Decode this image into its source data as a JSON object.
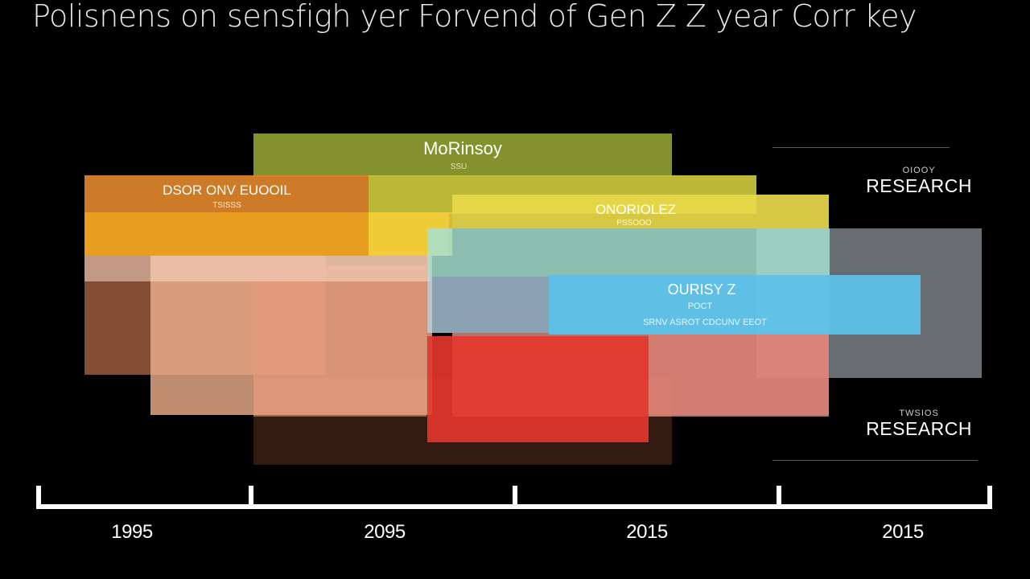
{
  "header": {
    "title": "Polisnens on sensfigh yer Forvend of Gen Z Z year Corr key"
  },
  "side": {
    "top_small": "OIOOY",
    "top_big": "RESEARCH",
    "bottom_small": "TWSIOS",
    "bottom_big": "RESEARCH"
  },
  "timeline": {
    "labels": [
      "1995",
      "2095",
      "2015",
      "2015"
    ]
  },
  "chart_data": {
    "type": "bar",
    "title": "Polisnens on sensfigh yer Forvend of Gen Z Z year Corr key",
    "xlabel": "",
    "ylabel": "",
    "grid": false,
    "legend": "none",
    "x_tick_labels": [
      "1995",
      "2095",
      "2015",
      "2015"
    ],
    "labeled_bands": [
      {
        "label": "MoRinsoy",
        "sublabel": "SSU",
        "color": "#8a9a2e"
      },
      {
        "label": "DSOR ONV EUOOIL",
        "sublabel": "TSISSS",
        "color": "#d9822b"
      },
      {
        "label": "ONORIOLEZ",
        "sublabel": "PSSOOO",
        "color": "#e8d84a"
      },
      {
        "label": "OURISY Z",
        "sublabel": "POCT",
        "sublabel2": "SRNV ASROT CDCUNV EEOT",
        "color": "#5ec1e8"
      }
    ]
  }
}
